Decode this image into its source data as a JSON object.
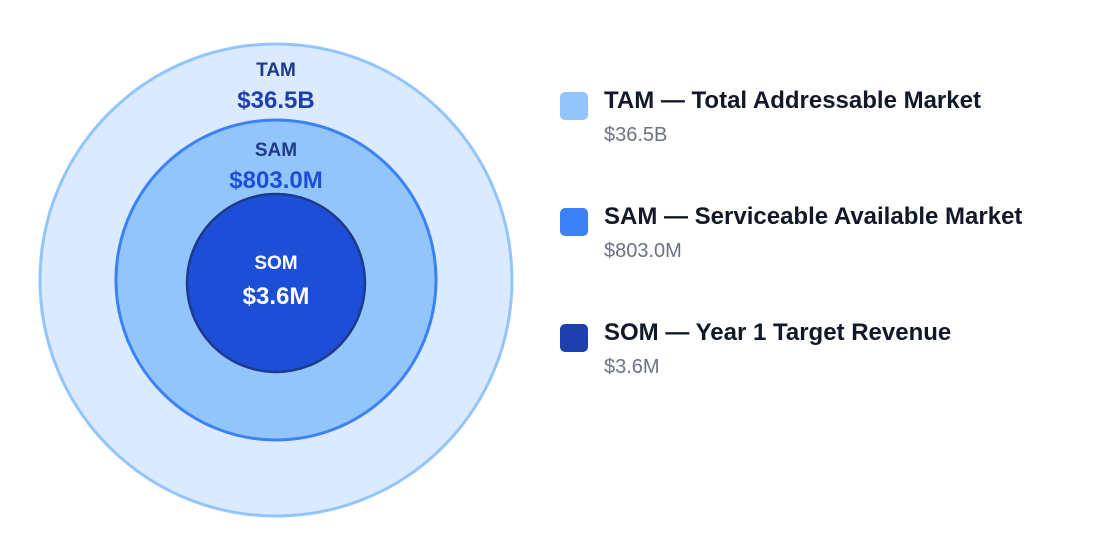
{
  "chart_data": {
    "type": "nested-circles",
    "series": [
      {
        "key": "TAM",
        "label": "TAM",
        "value": 36500000000,
        "value_label": "$36.5B",
        "legend": "TAM — Total Addressable Market",
        "fill": "#dbeafe",
        "stroke": "#93c5fd",
        "label_color": "#1e3a8a",
        "value_color": "#1e40af",
        "swatch": "#93c5fd"
      },
      {
        "key": "SAM",
        "label": "SAM",
        "value": 803000000,
        "value_label": "$803.0M",
        "legend": "SAM — Serviceable Available Market",
        "fill": "#93c5fd",
        "stroke": "#3b82f6",
        "label_color": "#1e3a8a",
        "value_color": "#1d4ed8",
        "swatch": "#3b82f6"
      },
      {
        "key": "SOM",
        "label": "SOM",
        "value": 3600000,
        "value_label": "$3.6M",
        "legend": "SOM — Year 1 Target Revenue",
        "fill": "#1d4ed8",
        "stroke": "#1e3a8a",
        "label_color": "#ffffff",
        "value_color": "#ffffff",
        "swatch": "#1e40af"
      }
    ]
  }
}
